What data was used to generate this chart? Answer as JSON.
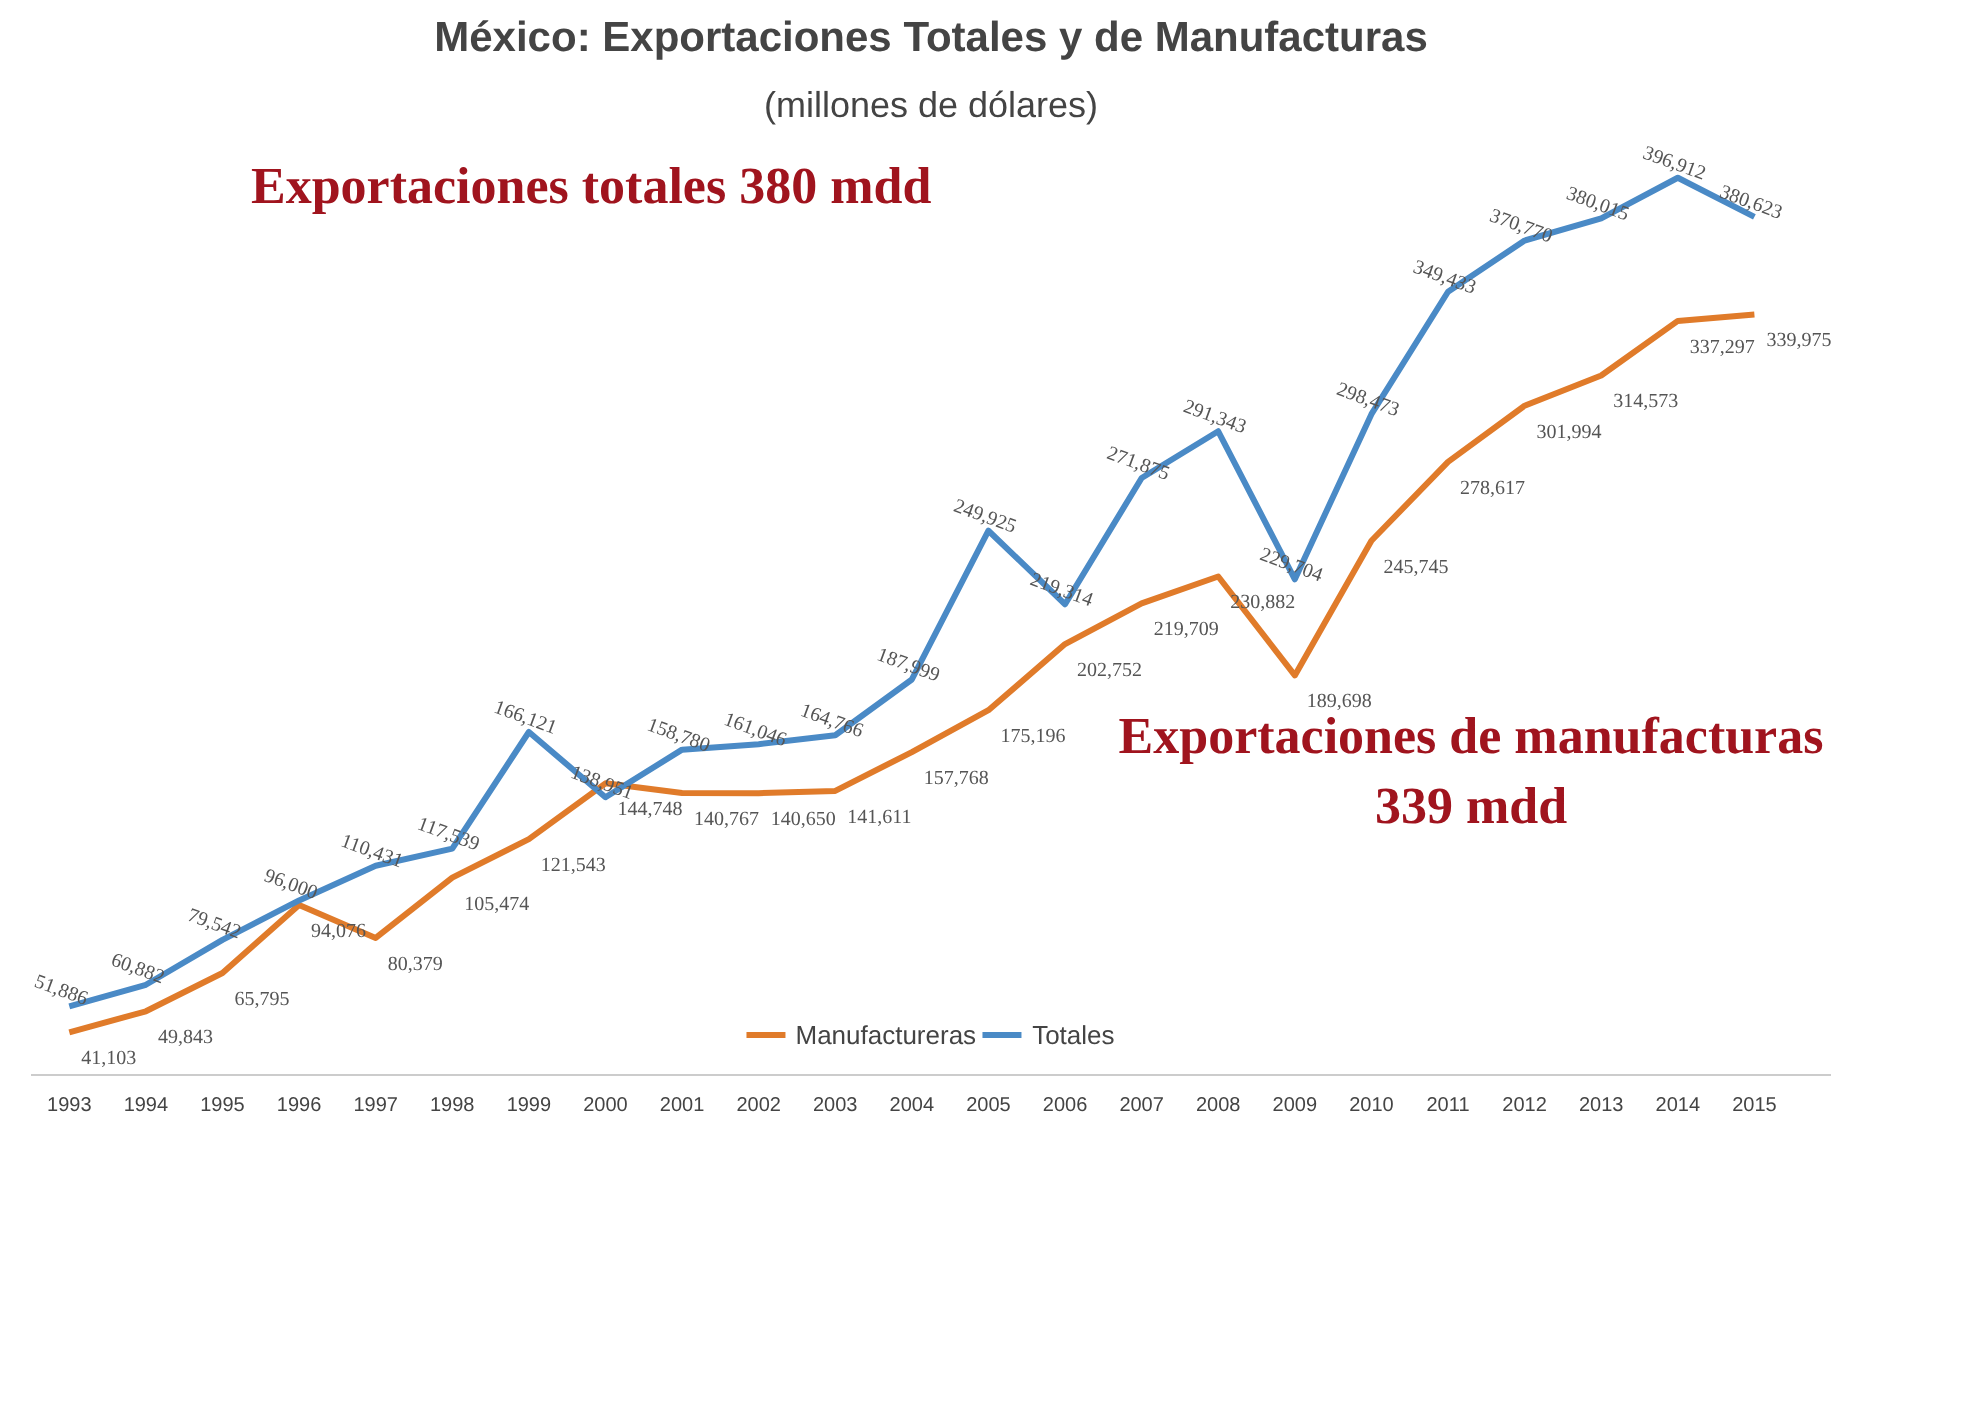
{
  "chart_data": {
    "type": "line",
    "title": "México: Exportaciones Totales y de Manufacturas",
    "subtitle": "(millones de dólares)",
    "categories": [
      "1993",
      "1994",
      "1995",
      "1996",
      "1997",
      "1998",
      "1999",
      "2000",
      "2001",
      "2002",
      "2003",
      "2004",
      "2005",
      "2006",
      "2007",
      "2008",
      "2009",
      "2010",
      "2011",
      "2012",
      "2013",
      "2014",
      "2015"
    ],
    "series": [
      {
        "name": "Manufactureras",
        "color": "#e07b2a",
        "values": [
          41103,
          49843,
          65795,
          94076,
          80379,
          105474,
          121543,
          144748,
          140767,
          140650,
          141611,
          157768,
          175196,
          202752,
          219709,
          230882,
          189698,
          245745,
          278617,
          301994,
          314573,
          337297,
          339975
        ],
        "value_labels": [
          "41,103",
          "49,843",
          "65,795",
          "94,076",
          "80,379",
          "105,474",
          "121,543",
          "144,748",
          "140,767",
          "140,650",
          "141,611",
          "157,768",
          "175,196",
          "202,752",
          "219,709",
          "230,882",
          "189,698",
          "245,745",
          "278,617",
          "301,994",
          "314,573",
          "337,297",
          "339,975"
        ]
      },
      {
        "name": "Totales",
        "color": "#4a8ac6",
        "values": [
          51886,
          60882,
          79542,
          96000,
          110431,
          117539,
          166121,
          138951,
          158780,
          161046,
          164766,
          187999,
          249925,
          219314,
          271875,
          291343,
          229704,
          298473,
          349433,
          370770,
          380015,
          396912,
          380623
        ],
        "value_labels": [
          "51,886",
          "60,882",
          "79,542",
          "96,000",
          "110,431",
          "117,539",
          "166,121",
          "138,951",
          "158,780",
          "161,046",
          "164,766",
          "187,999",
          "249,925",
          "219,314",
          "271,875",
          "291,343",
          "229,704",
          "298,473",
          "349,433",
          "370,770",
          "380,015",
          "396,912",
          "380,623"
        ]
      }
    ],
    "legend": "bottom",
    "grid": false,
    "annotations": [
      "Exportaciones totales 380 mdd",
      "Exportaciones de manufacturas\n339 mdd"
    ]
  }
}
